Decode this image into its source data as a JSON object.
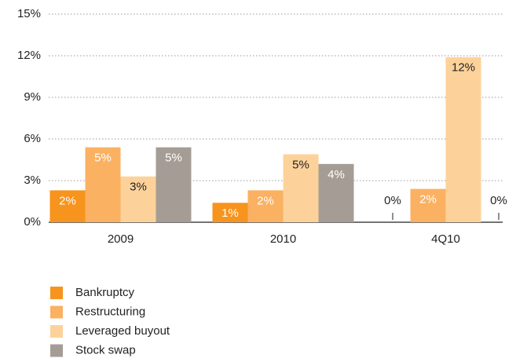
{
  "chart_data": {
    "type": "bar",
    "categories": [
      "2009",
      "2010",
      "4Q10"
    ],
    "series": [
      {
        "name": "Bankruptcy",
        "color": "#f7941d",
        "values": [
          2.3,
          1.4,
          0
        ],
        "value_labels": [
          "2%",
          "1%",
          "0%"
        ]
      },
      {
        "name": "Restructuring",
        "color": "#fbb162",
        "values": [
          5.4,
          2.3,
          2.4
        ],
        "value_labels": [
          "5%",
          "2%",
          "2%"
        ]
      },
      {
        "name": "Leveraged buyout",
        "color": "#fdd29a",
        "values": [
          3.3,
          4.9,
          11.9
        ],
        "value_labels": [
          "3%",
          "5%",
          "12%"
        ]
      },
      {
        "name": "Stock swap",
        "color": "#a59d95",
        "values": [
          5.4,
          4.2,
          0
        ],
        "value_labels": [
          "5%",
          "4%",
          "0%"
        ]
      }
    ],
    "ylim": [
      0,
      15
    ],
    "yticks": [
      {
        "value": 0,
        "label": "0%"
      },
      {
        "value": 3,
        "label": "3%"
      },
      {
        "value": 6,
        "label": "6%"
      },
      {
        "value": 9,
        "label": "9%"
      },
      {
        "value": 12,
        "label": "12%"
      },
      {
        "value": 15,
        "label": "15%"
      }
    ],
    "grid": true
  }
}
